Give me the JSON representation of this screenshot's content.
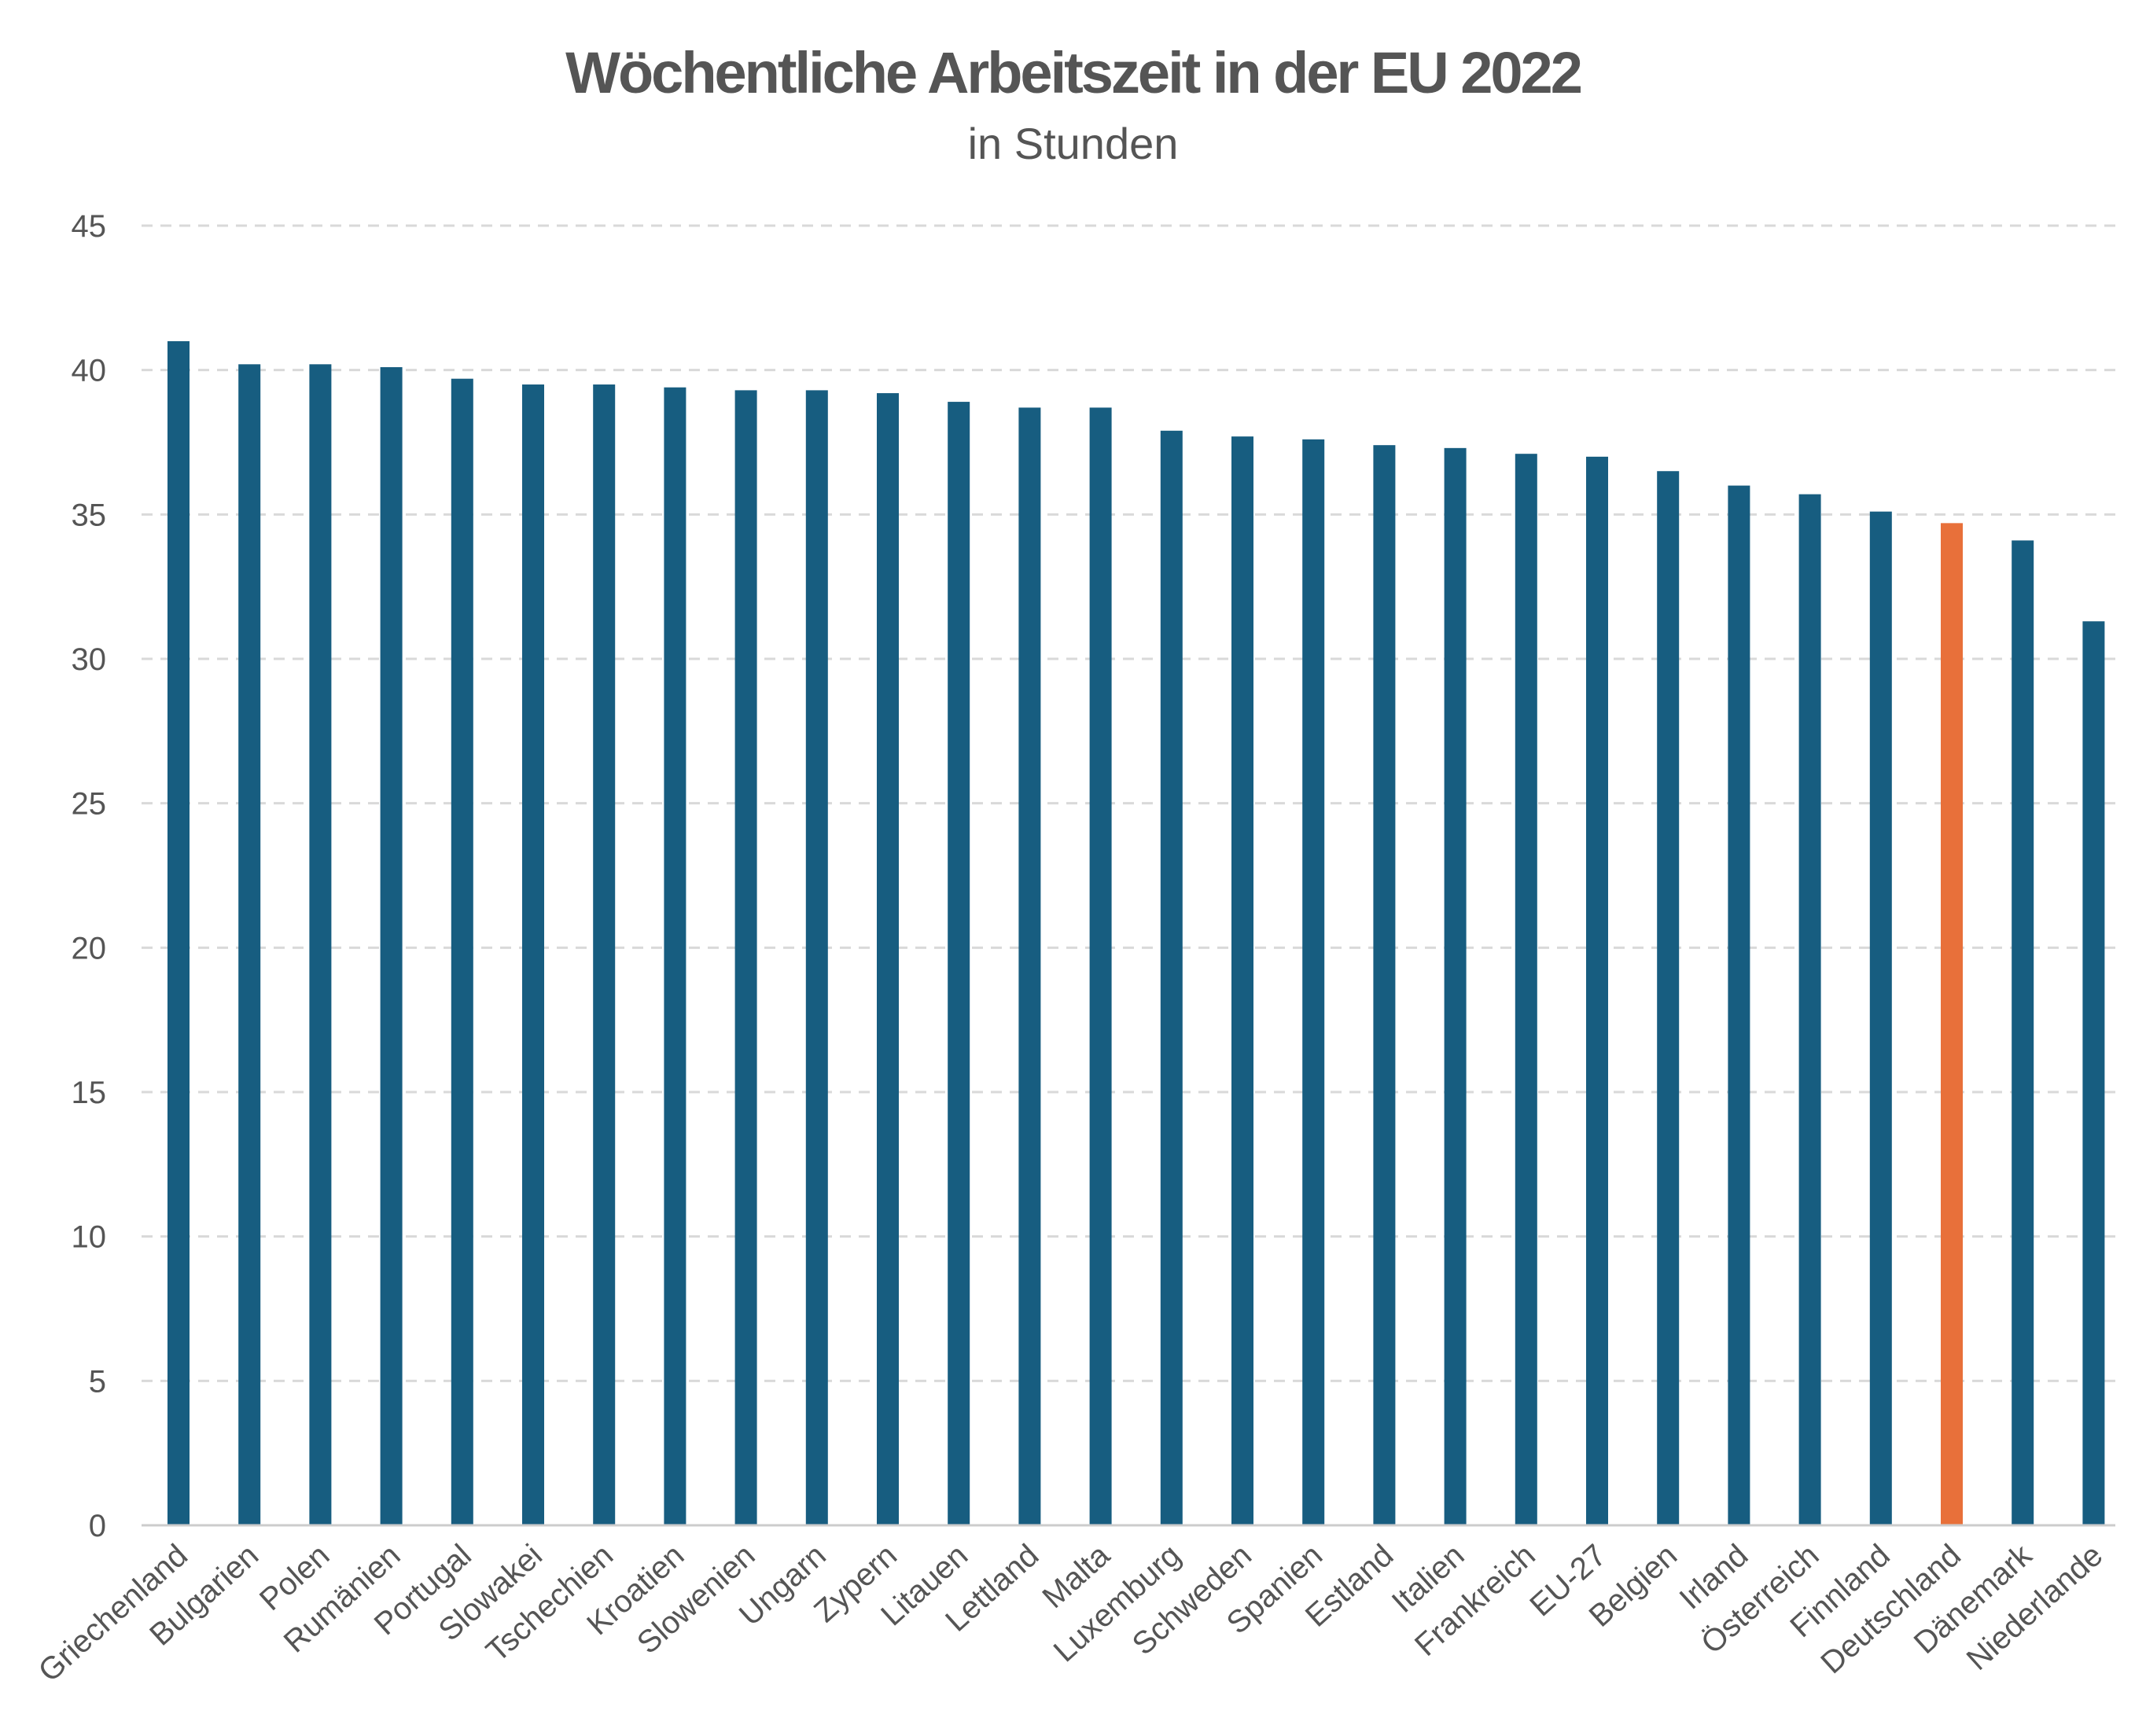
{
  "chart_data": {
    "type": "bar",
    "title": "Wöchentliche Arbeitszeit in der EU 2022",
    "subtitle": "in Stunden",
    "xlabel": "",
    "ylabel": "",
    "ylim": [
      0,
      45
    ],
    "yticks": [
      "0",
      "5",
      "10",
      "15",
      "20",
      "25",
      "30",
      "35",
      "40",
      "45"
    ],
    "grid": true,
    "categories": [
      "Griechenland",
      "Bulgarien",
      "Polen",
      "Rumänien",
      "Portugal",
      "Slowakei",
      "Tschechien",
      "Kroatien",
      "Slowenien",
      "Ungarn",
      "Zypern",
      "Litauen",
      "Lettland",
      "Malta",
      "Luxemburg",
      "Schweden",
      "Spanien",
      "Estland",
      "Italien",
      "Frankreich",
      "EU-27",
      "Belgien",
      "Irland",
      "Österreich",
      "Finnland",
      "Deutschland",
      "Dänemark",
      "Niederlande"
    ],
    "values": [
      41.0,
      40.2,
      40.2,
      40.1,
      39.7,
      39.5,
      39.5,
      39.4,
      39.3,
      39.3,
      39.2,
      38.9,
      38.7,
      38.7,
      37.9,
      37.7,
      37.6,
      37.4,
      37.3,
      37.1,
      37.0,
      36.5,
      36.0,
      35.7,
      35.1,
      34.7,
      34.1,
      31.3
    ],
    "highlight_category": "Deutschland",
    "colors": {
      "bar": "#175d80",
      "highlight": "#e8703a",
      "grid": "#d9d9d9",
      "axis": "#cccccc",
      "text": "#555555"
    }
  }
}
